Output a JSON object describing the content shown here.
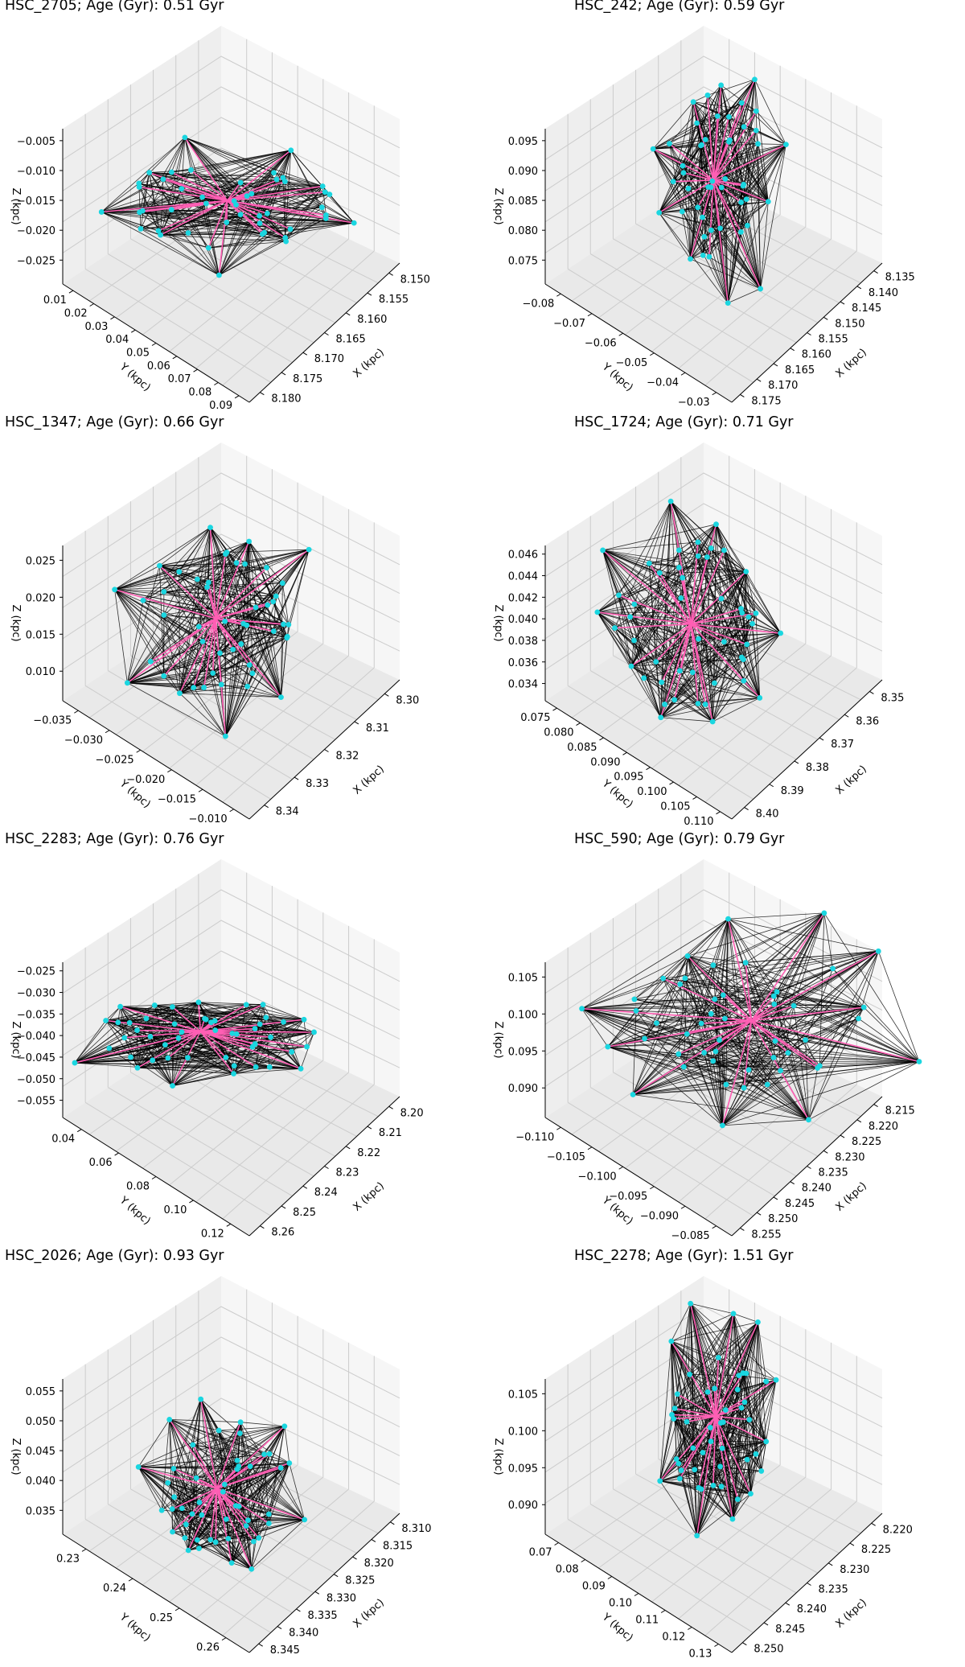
{
  "figure": {
    "colors": {
      "point": "#1ad6e0",
      "hub_edge": "#ff5fb4",
      "edge": "#000000",
      "pane_left": "#eeeeee",
      "pane_right": "#f6f6f6",
      "pane_floor": "#e9e9e9",
      "grid": "#cccccc"
    }
  },
  "chart_data": [
    {
      "type": "scatter",
      "title": "HSC_2705; Age (Gyr): 0.51 Gyr",
      "xlabel": "X (kpc)",
      "ylabel": "Y (kpc)",
      "zlabel": "Z (kpc)",
      "x_ticks": [
        "8.150",
        "8.155",
        "8.160",
        "8.165",
        "8.170",
        "8.175",
        "8.180"
      ],
      "y_ticks": [
        "0.01",
        "0.02",
        "0.03",
        "0.04",
        "0.05",
        "0.06",
        "0.07",
        "0.08",
        "0.09"
      ],
      "z_ticks": [
        "−0.005",
        "−0.010",
        "−0.015",
        "−0.020",
        "−0.025"
      ],
      "shape": "wide",
      "grid": true
    },
    {
      "type": "scatter",
      "title": "HSC_242; Age (Gyr): 0.59 Gyr",
      "xlabel": "X (kpc)",
      "ylabel": "Y (kpc)",
      "zlabel": "Z (kpc)",
      "x_ticks": [
        "8.135",
        "8.140",
        "8.145",
        "8.150",
        "8.155",
        "8.160",
        "8.165",
        "8.170",
        "8.175"
      ],
      "y_ticks": [
        "−0.08",
        "−0.07",
        "−0.06",
        "−0.05",
        "−0.04",
        "−0.03"
      ],
      "z_ticks": [
        "0.095",
        "0.090",
        "0.085",
        "0.080",
        "0.075"
      ],
      "shape": "tall",
      "grid": true
    },
    {
      "type": "scatter",
      "title": "HSC_1347; Age (Gyr): 0.66 Gyr",
      "xlabel": "X (kpc)",
      "ylabel": "Y (kpc)",
      "zlabel": "Z (kpc)",
      "x_ticks": [
        "8.30",
        "8.31",
        "8.32",
        "8.33",
        "8.34"
      ],
      "y_ticks": [
        "−0.035",
        "−0.030",
        "−0.025",
        "−0.020",
        "−0.015",
        "−0.010"
      ],
      "z_ticks": [
        "0.025",
        "0.020",
        "0.015",
        "0.010"
      ],
      "shape": "round",
      "grid": true
    },
    {
      "type": "scatter",
      "title": "HSC_1724; Age (Gyr): 0.71 Gyr",
      "xlabel": "X (kpc)",
      "ylabel": "Y (kpc)",
      "zlabel": "Z (kpc)",
      "x_ticks": [
        "8.35",
        "8.36",
        "8.37",
        "8.38",
        "8.39",
        "8.40"
      ],
      "y_ticks": [
        "0.075",
        "0.080",
        "0.085",
        "0.090",
        "0.095",
        "0.100",
        "0.105",
        "0.110"
      ],
      "z_ticks": [
        "0.046",
        "0.044",
        "0.042",
        "0.040",
        "0.038",
        "0.036",
        "0.034"
      ],
      "shape": "kite",
      "grid": true
    },
    {
      "type": "scatter",
      "title": "HSC_2283; Age (Gyr): 0.76 Gyr",
      "xlabel": "X (kpc)",
      "ylabel": "Y (kpc)",
      "zlabel": "Z (kpc)",
      "x_ticks": [
        "8.20",
        "8.21",
        "8.22",
        "8.23",
        "8.24",
        "8.25",
        "8.26"
      ],
      "y_ticks": [
        "0.04",
        "0.06",
        "0.08",
        "0.10",
        "0.12"
      ],
      "z_ticks": [
        "−0.025",
        "−0.030",
        "−0.035",
        "−0.040",
        "−0.045",
        "−0.050",
        "−0.055"
      ],
      "shape": "flat",
      "grid": true
    },
    {
      "type": "scatter",
      "title": "HSC_590; Age (Gyr): 0.79 Gyr",
      "xlabel": "X (kpc)",
      "ylabel": "Y (kpc)",
      "zlabel": "Z (kpc)",
      "x_ticks": [
        "8.215",
        "8.220",
        "8.225",
        "8.230",
        "8.235",
        "8.240",
        "8.245",
        "8.250",
        "8.255"
      ],
      "y_ticks": [
        "−0.110",
        "−0.105",
        "−0.100",
        "−0.095",
        "−0.090",
        "−0.085"
      ],
      "z_ticks": [
        "0.105",
        "0.100",
        "0.095",
        "0.090"
      ],
      "shape": "spread",
      "grid": true
    },
    {
      "type": "scatter",
      "title": "HSC_2026; Age (Gyr): 0.93 Gyr",
      "xlabel": "X (kpc)",
      "ylabel": "Y (kpc)",
      "zlabel": "Z (kpc)",
      "x_ticks": [
        "8.310",
        "8.315",
        "8.320",
        "8.325",
        "8.330",
        "8.335",
        "8.340",
        "8.345"
      ],
      "y_ticks": [
        "0.23",
        "0.24",
        "0.25",
        "0.26"
      ],
      "z_ticks": [
        "0.055",
        "0.050",
        "0.045",
        "0.040",
        "0.035"
      ],
      "shape": "small",
      "grid": true
    },
    {
      "type": "scatter",
      "title": "HSC_2278; Age (Gyr): 1.51 Gyr",
      "xlabel": "X (kpc)",
      "ylabel": "Y (kpc)",
      "zlabel": "Z (kpc)",
      "x_ticks": [
        "8.220",
        "8.225",
        "8.230",
        "8.235",
        "8.240",
        "8.245",
        "8.250"
      ],
      "y_ticks": [
        "0.07",
        "0.08",
        "0.09",
        "0.10",
        "0.11",
        "0.12",
        "0.13"
      ],
      "z_ticks": [
        "0.105",
        "0.100",
        "0.095",
        "0.090"
      ],
      "shape": "tall",
      "grid": true
    }
  ]
}
